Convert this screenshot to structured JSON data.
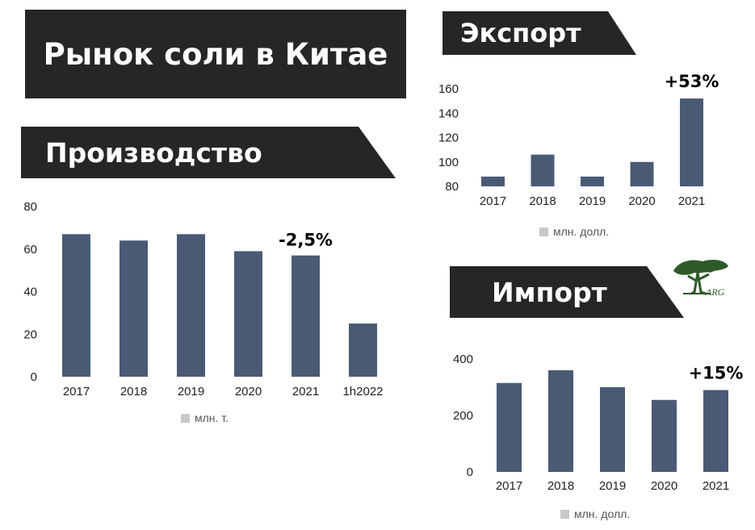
{
  "title": "Рынок соли в Китае",
  "sections": {
    "production": "Производство",
    "export": "Экспорт",
    "import": "Импорт"
  },
  "logo_text": "ARG",
  "colors": {
    "bar": "#4a5a75",
    "banner": "#262626",
    "legend": "#c8c8c8",
    "logo": "#2e5a2a"
  },
  "chart_data": [
    {
      "id": "production",
      "type": "bar",
      "categories": [
        "2017",
        "2018",
        "2019",
        "2020",
        "2021",
        "1h2022"
      ],
      "values": [
        67,
        64,
        67,
        59,
        57,
        25
      ],
      "yticks": [
        "0",
        "20",
        "40",
        "60",
        "80"
      ],
      "ylim": [
        0,
        80
      ],
      "legend": "млн. т.",
      "annotation": {
        "category": "2021",
        "text": "-2,5%"
      },
      "grid": false,
      "legend_position": "bottom"
    },
    {
      "id": "export",
      "type": "bar",
      "categories": [
        "2017",
        "2018",
        "2019",
        "2020",
        "2021"
      ],
      "values": [
        88,
        106,
        88,
        100,
        152
      ],
      "yticks": [
        "80",
        "100",
        "120",
        "140",
        "160"
      ],
      "ylim": [
        80,
        160
      ],
      "legend": "млн. долл.",
      "annotation": {
        "category": "2021",
        "text": "+53%"
      },
      "grid": false,
      "legend_position": "bottom"
    },
    {
      "id": "import",
      "type": "bar",
      "categories": [
        "2017",
        "2018",
        "2019",
        "2020",
        "2021"
      ],
      "values": [
        315,
        360,
        300,
        255,
        290
      ],
      "yticks": [
        "0",
        "200",
        "400"
      ],
      "ylim": [
        0,
        400
      ],
      "legend": "млн. долл.",
      "annotation": {
        "category": "2021",
        "text": "+15%"
      },
      "grid": false,
      "legend_position": "bottom"
    }
  ]
}
